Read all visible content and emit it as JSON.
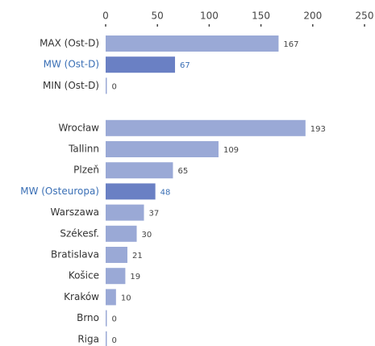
{
  "chart_data": {
    "type": "bar",
    "orientation": "horizontal",
    "categories": [
      "MAX (Ost-D)",
      "MW (Ost-D)",
      "MIN (Ost-D)",
      null,
      "Wrocław",
      "Tallinn",
      "Plzeň",
      "MW (Osteuropa)",
      "Warszawa",
      "Székesf.",
      "Bratislava",
      "Košice",
      "Kraków",
      "Brno",
      "Riga"
    ],
    "values": [
      167,
      67,
      0,
      null,
      193,
      109,
      65,
      48,
      37,
      30,
      21,
      19,
      10,
      0,
      0
    ],
    "colors": [
      "#9aa9d6",
      "#6a80c4",
      "#9aa9d6",
      null,
      "#9aa9d6",
      "#9aa9d6",
      "#9aa9d6",
      "#6a80c4",
      "#9aa9d6",
      "#9aa9d6",
      "#9aa9d6",
      "#9aa9d6",
      "#9aa9d6",
      "#9aa9d6",
      "#9aa9d6"
    ],
    "label_colors": [
      "#333333",
      "#3a6fb5",
      "#333333",
      null,
      "#333333",
      "#333333",
      "#333333",
      "#3a6fb5",
      "#333333",
      "#333333",
      "#333333",
      "#333333",
      "#333333",
      "#333333",
      "#333333"
    ],
    "xlim": [
      0,
      250
    ],
    "xticks": [
      0,
      50,
      100,
      150,
      200,
      250
    ],
    "xaxis_position": "top"
  }
}
